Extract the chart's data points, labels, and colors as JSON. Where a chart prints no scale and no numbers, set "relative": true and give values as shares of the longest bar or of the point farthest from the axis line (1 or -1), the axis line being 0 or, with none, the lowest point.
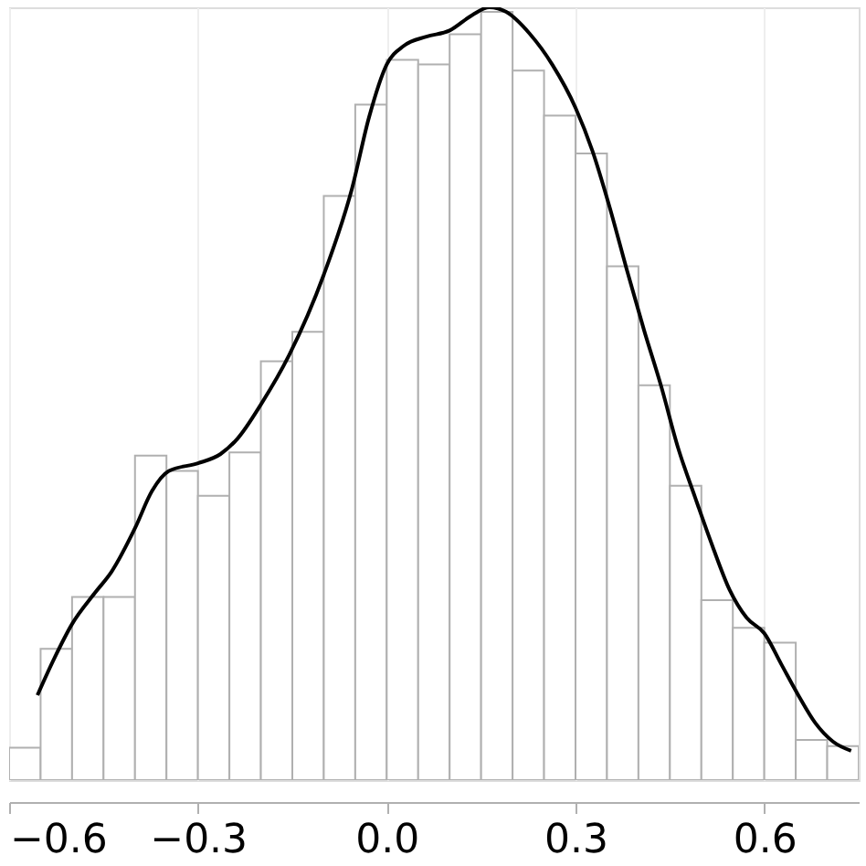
{
  "chart_data": {
    "type": "histogram",
    "relative": true,
    "grid": "x",
    "bins": [
      -0.6,
      -0.55,
      -0.5,
      -0.45,
      -0.4,
      -0.35,
      -0.3,
      -0.25,
      -0.2,
      -0.15,
      -0.1,
      -0.05,
      0.0,
      0.05,
      0.1,
      0.15,
      0.2,
      0.25,
      0.3,
      0.35,
      0.4,
      0.45,
      0.5,
      0.55,
      0.6,
      0.65,
      0.7,
      0.75
    ],
    "xlim": [
      -0.6,
      0.75
    ],
    "xticks": [
      {
        "value": -0.6,
        "label": "−0.6"
      },
      {
        "value": -0.3,
        "label": "−0.3"
      },
      {
        "value": 0.0,
        "label": "0.0"
      },
      {
        "value": 0.3,
        "label": "0.3"
      },
      {
        "value": 0.6,
        "label": "0.6"
      }
    ],
    "series": [
      {
        "color": "#b0b0b0",
        "values": [
          0.042,
          0.17,
          0.237,
          0.237,
          0.42,
          0.4,
          0.368,
          0.424,
          0.542,
          0.58,
          0.756,
          0.874,
          0.932,
          0.926,
          0.965,
          0.994,
          0.918,
          0.86,
          0.811,
          0.665,
          0.511,
          0.381,
          0.233,
          0.197,
          0.178,
          0.052,
          0.044
        ]
      },
      {
        "type": "line",
        "color": "#000000",
        "x": [
          -0.555,
          -0.528,
          -0.5,
          -0.464,
          -0.437,
          -0.4,
          -0.373,
          -0.346,
          -0.3,
          -0.264,
          -0.237,
          -0.2,
          -0.155,
          -0.1,
          -0.055,
          -0.028,
          0.0,
          0.027,
          0.063,
          0.1,
          0.136,
          0.163,
          0.19,
          0.227,
          0.263,
          0.3,
          0.327,
          0.354,
          0.381,
          0.409,
          0.436,
          0.463,
          0.49,
          0.518,
          0.545,
          0.572,
          0.6,
          0.627,
          0.654,
          0.681,
          0.709,
          0.738
        ],
        "values": [
          0.11,
          0.158,
          0.202,
          0.242,
          0.27,
          0.326,
          0.374,
          0.4,
          0.41,
          0.422,
          0.442,
          0.486,
          0.55,
          0.654,
          0.766,
          0.858,
          0.926,
          0.95,
          0.962,
          0.97,
          0.99,
          1.0,
          0.994,
          0.966,
          0.926,
          0.87,
          0.814,
          0.742,
          0.662,
          0.582,
          0.51,
          0.43,
          0.366,
          0.302,
          0.246,
          0.21,
          0.19,
          0.15,
          0.11,
          0.074,
          0.05,
          0.038
        ]
      }
    ]
  }
}
